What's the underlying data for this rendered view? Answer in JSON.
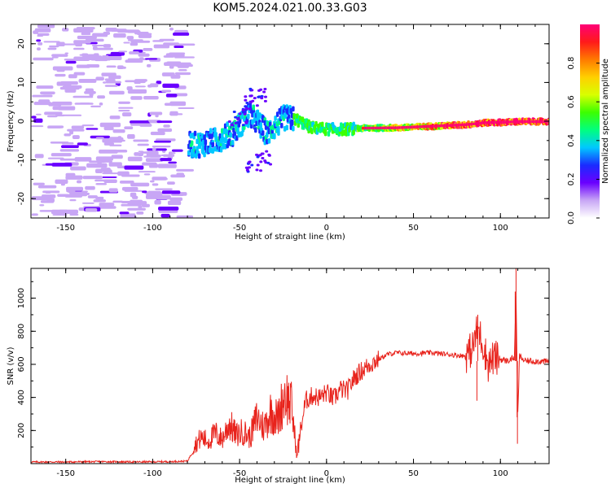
{
  "figure_title": "KOM5.2024.021.00.33.G03",
  "chart_data": [
    {
      "type": "heatmap",
      "title": "KOM5.2024.021.00.33.G03",
      "xlabel": "Height of straight line (km)",
      "ylabel": "Frequency (Hz)",
      "xlim": [
        -170,
        128
      ],
      "ylim": [
        -25,
        25
      ],
      "xticks": [
        -150,
        -100,
        -50,
        0,
        50,
        100
      ],
      "yticks": [
        -20,
        -10,
        0,
        10,
        20
      ],
      "colorbar": {
        "label": "Normalized spectral amplitude",
        "range": [
          0,
          1
        ],
        "ticks": [
          0.0,
          0.2,
          0.4,
          0.6,
          0.8
        ],
        "colormap": [
          "#ffffff",
          "#c8a6f5",
          "#6a00ff",
          "#1a2bff",
          "#00c8ff",
          "#00ff7f",
          "#3cff00",
          "#d8ff00",
          "#ffd000",
          "#ff7a00",
          "#ff1a1a",
          "#ff0077"
        ]
      },
      "ridge": {
        "description_points_x": [
          -75,
          -65,
          -55,
          -45,
          -35,
          -25,
          -18,
          -10,
          0,
          10,
          20,
          40,
          60,
          80,
          90,
          100,
          110,
          128
        ],
        "description_points_y": [
          -6,
          -5,
          -3,
          2,
          -3,
          1,
          0.5,
          -1.5,
          -2,
          -2,
          -1.7,
          -1.6,
          -1.2,
          -0.8,
          -0.3,
          -0.2,
          0,
          0
        ]
      }
    },
    {
      "type": "line",
      "title": "",
      "xlabel": "Height of straight line (km)",
      "ylabel": "SNR (v/v)",
      "xlim": [
        -170,
        128
      ],
      "ylim": [
        0,
        1180
      ],
      "xticks": [
        -150,
        -100,
        -50,
        0,
        50,
        100
      ],
      "yticks": [
        200,
        400,
        600,
        800,
        1000
      ],
      "grid": false,
      "series": [
        {
          "color": "#e8231c",
          "x": [
            -170,
            -150,
            -130,
            -110,
            -90,
            -80,
            -76,
            -72,
            -68,
            -64,
            -60,
            -56,
            -52,
            -48,
            -44,
            -40,
            -36,
            -32,
            -28,
            -24,
            -20,
            -17,
            -15,
            -12,
            -8,
            -4,
            0,
            4,
            8,
            12,
            16,
            20,
            25,
            30,
            35,
            40,
            50,
            60,
            70,
            80,
            84,
            87,
            90,
            93,
            96,
            100,
            104,
            108,
            109,
            110,
            111,
            114,
            120,
            128
          ],
          "y": [
            10,
            10,
            12,
            10,
            12,
            15,
            90,
            130,
            110,
            150,
            120,
            200,
            140,
            160,
            130,
            230,
            180,
            260,
            220,
            350,
            280,
            30,
            200,
            380,
            410,
            400,
            430,
            390,
            450,
            440,
            520,
            560,
            600,
            630,
            660,
            670,
            665,
            670,
            660,
            650,
            700,
            820,
            720,
            600,
            640,
            630,
            620,
            640,
            1000,
            300,
            650,
            620,
            620,
            615
          ]
        }
      ]
    }
  ]
}
